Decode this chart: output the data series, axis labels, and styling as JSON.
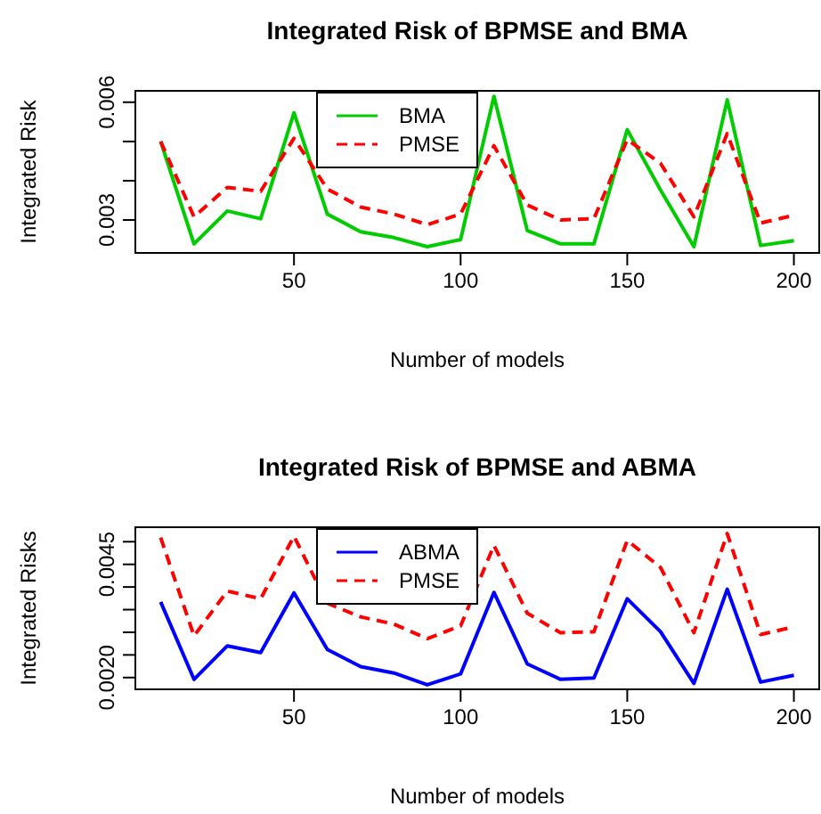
{
  "chart_data": [
    {
      "type": "line",
      "title": "Integrated Risk of BPMSE and BMA",
      "xlabel": "Number of models",
      "ylabel": "Integrated Risk",
      "x": [
        10,
        20,
        30,
        40,
        50,
        60,
        70,
        80,
        90,
        100,
        110,
        120,
        130,
        140,
        150,
        160,
        170,
        180,
        190,
        200
      ],
      "series": [
        {
          "name": "BMA",
          "color": "#00cc00",
          "line_style": "solid",
          "values": [
            0.005,
            0.00239,
            0.00323,
            0.00303,
            0.00573,
            0.00315,
            0.0027,
            0.00255,
            0.00232,
            0.0025,
            0.00615,
            0.00273,
            0.00239,
            0.00239,
            0.0053,
            0.00376,
            0.00232,
            0.00606,
            0.00235,
            0.00247
          ]
        },
        {
          "name": "PMSE",
          "color": "#ff0000",
          "line_style": "dashed",
          "values": [
            0.005,
            0.00308,
            0.00383,
            0.00373,
            0.00508,
            0.00379,
            0.00333,
            0.00315,
            0.00288,
            0.00315,
            0.00489,
            0.00338,
            0.003,
            0.00303,
            0.00505,
            0.00444,
            0.00308,
            0.0052,
            0.00292,
            0.00312
          ]
        }
      ],
      "xlim": [
        2.4,
        207.6
      ],
      "xticks": [
        50,
        100,
        150,
        200
      ],
      "ylim": [
        0.00216,
        0.00629
      ],
      "yticks": [
        {
          "value": 0.003,
          "label": "0.003"
        },
        {
          "value": 0.004,
          "label": null
        },
        {
          "value": 0.005,
          "label": null
        },
        {
          "value": 0.006,
          "label": "0.006"
        }
      ],
      "grid": false,
      "legend": "top",
      "marker": "none"
    },
    {
      "type": "line",
      "title": "Integrated Risk of BPMSE and ABMA",
      "xlabel": "Number of models",
      "ylabel": "Integrated Risks",
      "x": [
        10,
        20,
        30,
        40,
        50,
        60,
        70,
        80,
        90,
        100,
        110,
        120,
        130,
        140,
        150,
        160,
        170,
        180,
        190,
        200
      ],
      "series": [
        {
          "name": "ABMA",
          "color": "#0000ff",
          "line_style": "solid",
          "values": [
            0.00367,
            0.00196,
            0.0027,
            0.00255,
            0.00387,
            0.00262,
            0.00224,
            0.0021,
            0.00184,
            0.00208,
            0.00388,
            0.0023,
            0.00196,
            0.00199,
            0.00374,
            0.00301,
            0.00187,
            0.00395,
            0.0019,
            0.00205
          ]
        },
        {
          "name": "PMSE",
          "color": "#ff0000",
          "line_style": "dashed",
          "values": [
            0.00509,
            0.00292,
            0.00391,
            0.00374,
            0.00512,
            0.00364,
            0.00334,
            0.00318,
            0.00286,
            0.00314,
            0.00492,
            0.00342,
            0.00299,
            0.00301,
            0.00503,
            0.00443,
            0.00299,
            0.00518,
            0.00295,
            0.00312
          ]
        }
      ],
      "xlim": [
        2.4,
        207.6
      ],
      "xticks": [
        50,
        100,
        150,
        200
      ],
      "ylim": [
        0.00174,
        0.00532
      ],
      "yticks": [
        {
          "value": 0.002,
          "label": "0.0020"
        },
        {
          "value": 0.0025,
          "label": null
        },
        {
          "value": 0.003,
          "label": null
        },
        {
          "value": 0.0035,
          "label": null
        },
        {
          "value": 0.004,
          "label": null
        },
        {
          "value": 0.0045,
          "label": "0.0045"
        },
        {
          "value": 0.005,
          "label": null
        }
      ],
      "grid": false,
      "legend": "top",
      "marker": "none"
    }
  ]
}
